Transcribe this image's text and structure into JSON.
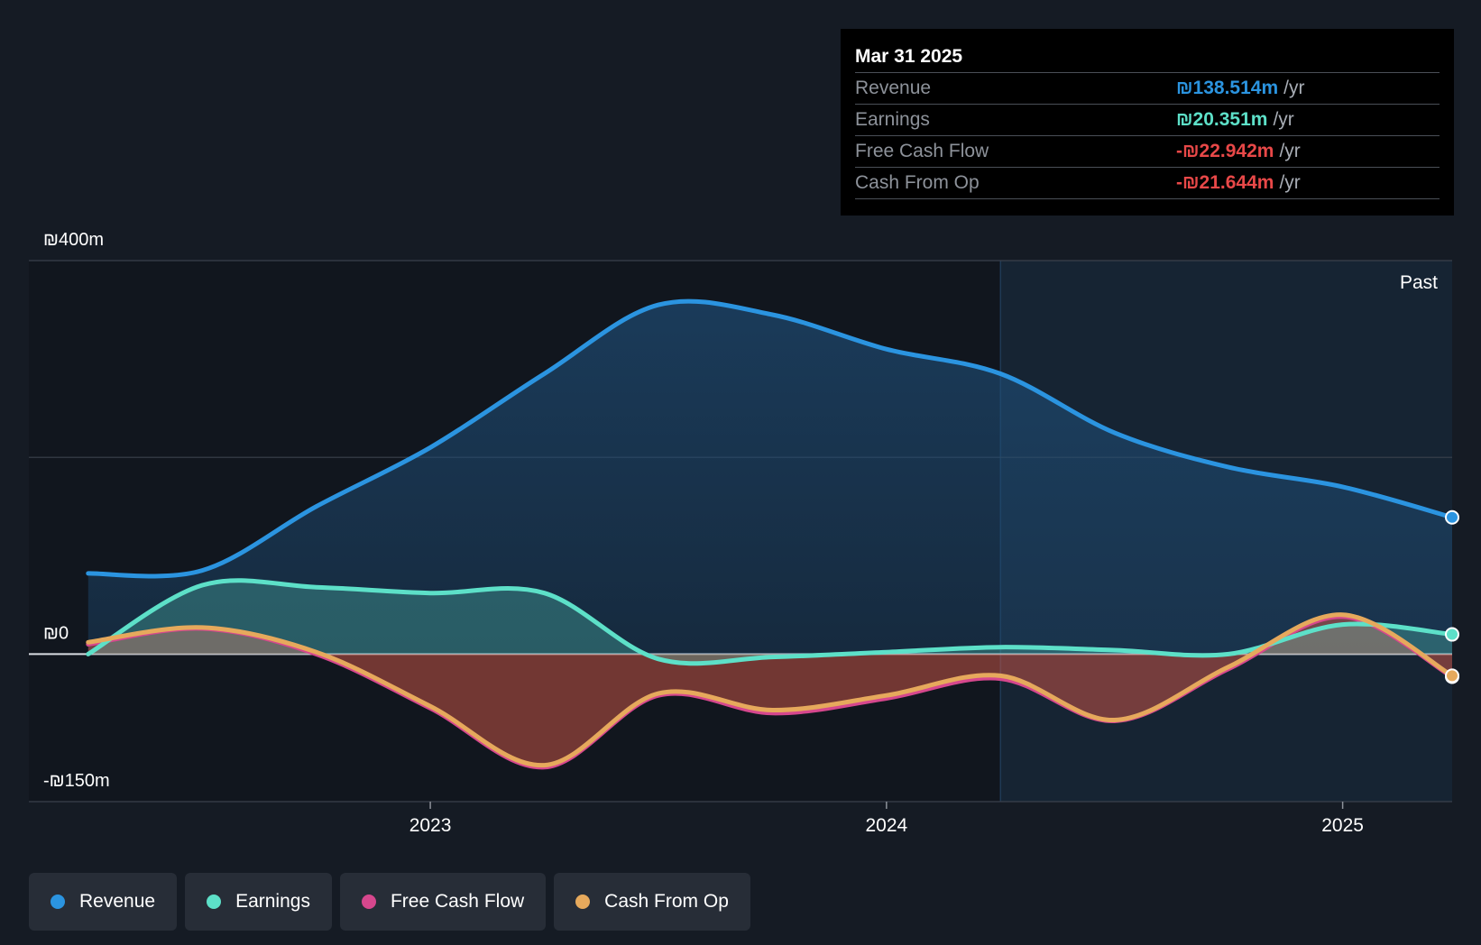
{
  "chart_data": {
    "type": "area",
    "y_labels": {
      "top": "₪400m",
      "zero": "₪0",
      "bottom": "-₪150m"
    },
    "ylim": [
      -150,
      400
    ],
    "y_gridlines": [
      400,
      200,
      0
    ],
    "x_ticks": [
      {
        "label": "2023",
        "value": 2023.0
      },
      {
        "label": "2024",
        "value": 2024.0
      },
      {
        "label": "2025",
        "value": 2025.0
      }
    ],
    "xlim": [
      2022.12,
      2025.24
    ],
    "forecast_divider_x": 2024.25,
    "past_label": "Past",
    "series": [
      {
        "name": "Revenue",
        "color": "#2b94e0",
        "x": [
          2022.25,
          2022.5,
          2022.75,
          2023.0,
          2023.25,
          2023.5,
          2023.75,
          2024.0,
          2024.25,
          2024.5,
          2024.75,
          2025.0,
          2025.24
        ],
        "values": [
          82,
          85,
          150,
          210,
          285,
          355,
          345,
          310,
          285,
          225,
          190,
          170,
          139
        ]
      },
      {
        "name": "Earnings",
        "color": "#5de0c8",
        "x": [
          2022.25,
          2022.5,
          2022.75,
          2023.0,
          2023.25,
          2023.5,
          2023.75,
          2024.0,
          2024.25,
          2024.5,
          2024.75,
          2025.0,
          2025.24
        ],
        "values": [
          0,
          70,
          68,
          62,
          62,
          -5,
          -3,
          2,
          7,
          4,
          0,
          30,
          20
        ]
      },
      {
        "name": "Free Cash Flow",
        "color": "#d6478d",
        "x": [
          2022.25,
          2022.5,
          2022.75,
          2023.0,
          2023.25,
          2023.5,
          2023.75,
          2024.0,
          2024.25,
          2024.5,
          2024.75,
          2025.0,
          2025.24
        ],
        "values": [
          10,
          26,
          0,
          -55,
          -115,
          -42,
          -60,
          -45,
          -25,
          -68,
          -15,
          38,
          -23
        ]
      },
      {
        "name": "Cash From Op",
        "color": "#e6a95c",
        "x": [
          2022.25,
          2022.5,
          2022.75,
          2023.0,
          2023.25,
          2023.5,
          2023.75,
          2024.0,
          2024.25,
          2024.5,
          2024.75,
          2025.0,
          2025.24
        ],
        "values": [
          12,
          27,
          2,
          -53,
          -113,
          -40,
          -57,
          -42,
          -22,
          -67,
          -13,
          40,
          -22
        ]
      }
    ]
  },
  "tooltip": {
    "date": "Mar 31 2025",
    "rows": [
      {
        "label": "Revenue",
        "value": "₪138.514m",
        "unit": "/yr",
        "color": "#2b94e0"
      },
      {
        "label": "Earnings",
        "value": "₪20.351m",
        "unit": "/yr",
        "color": "#5de0c8"
      },
      {
        "label": "Free Cash Flow",
        "value": "-₪22.942m",
        "unit": "/yr",
        "color": "#e84848"
      },
      {
        "label": "Cash From Op",
        "value": "-₪21.644m",
        "unit": "/yr",
        "color": "#e84848"
      }
    ]
  },
  "legend": [
    {
      "label": "Revenue",
      "color": "#2b94e0"
    },
    {
      "label": "Earnings",
      "color": "#5de0c8"
    },
    {
      "label": "Free Cash Flow",
      "color": "#d6478d"
    },
    {
      "label": "Cash From Op",
      "color": "#e6a95c"
    }
  ]
}
